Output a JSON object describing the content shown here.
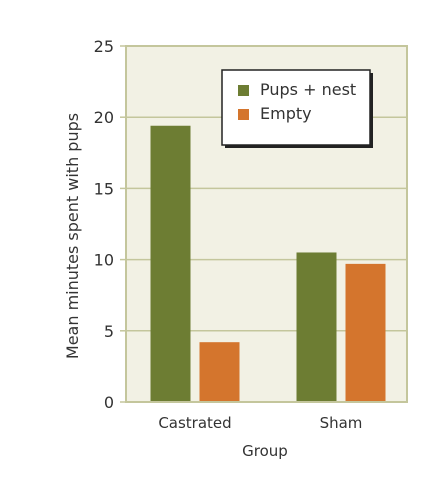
{
  "chart_data": {
    "type": "bar",
    "categories": [
      "Castrated",
      "Sham"
    ],
    "series": [
      {
        "name": "Pups + nest",
        "values": [
          19.4,
          10.5
        ]
      },
      {
        "name": "Empty",
        "values": [
          4.2,
          9.7
        ]
      }
    ],
    "xlabel": "Group",
    "ylabel": "Mean minutes spent with pups",
    "ylim": [
      0,
      25
    ],
    "yticks": [
      0,
      5,
      10,
      15,
      20,
      25
    ],
    "grid": true,
    "legend_position": "top-right",
    "colors": {
      "plot_background": "#f2f1e4",
      "plot_border": "#c4c69c",
      "gridline": "#c4c69c",
      "series": [
        "#6d7d33",
        "#d4752d"
      ],
      "text": "#333333",
      "legend_border": "#222222"
    }
  }
}
